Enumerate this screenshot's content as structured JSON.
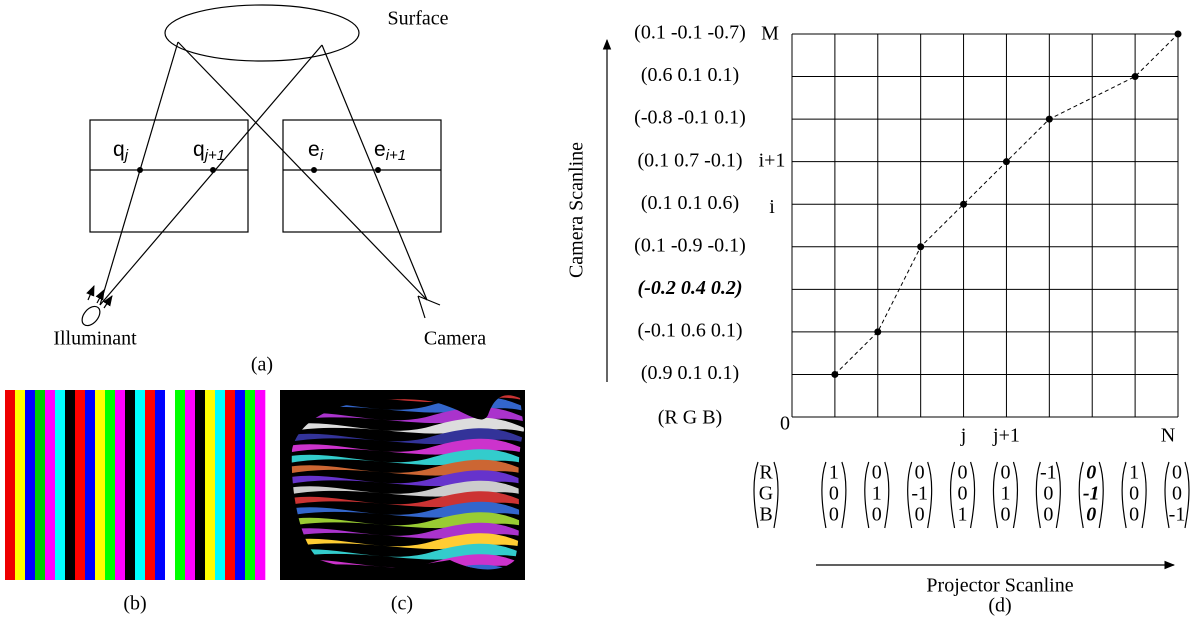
{
  "panel_a": {
    "surface": "Surface",
    "points": [
      {
        "base": "q",
        "sub": "j"
      },
      {
        "base": "q",
        "sub": "j+1"
      },
      {
        "base": "e",
        "sub": "i"
      },
      {
        "base": "e",
        "sub": "i+1"
      }
    ],
    "illuminant": "Illuminant",
    "camera": "Camera",
    "caption": "(a)"
  },
  "panel_b": {
    "caption": "(b)"
  },
  "panel_c": {
    "caption": "(c)"
  },
  "panel_d": {
    "y_axis_title": "Camera Scanline",
    "x_axis_title": "Projector Scanline",
    "caption": "(d)",
    "row_labels": [
      "(0.1 -0.1 -0.7)",
      "(0.6 0.1 0.1)",
      "(-0.8 -0.1 0.1)",
      "(0.1 0.7 -0.1)",
      "(0.1 0.1 0.6)",
      "(0.1 -0.9 -0.1)",
      "(-0.2 0.4 0.2)",
      "(-0.1 0.6 0.1)",
      "(0.9 0.1 0.1)",
      "(R   G   B)"
    ],
    "row_marks": [
      "M",
      "i+1",
      "i",
      "0"
    ],
    "column_marks": [
      "j",
      "j+1",
      "N"
    ],
    "vector_header": [
      "R",
      "G",
      "B"
    ],
    "vectors": [
      [
        "1",
        "0",
        "0"
      ],
      [
        "0",
        "1",
        "0"
      ],
      [
        "0",
        "-1",
        "0"
      ],
      [
        "0",
        "0",
        "1"
      ],
      [
        "0",
        "1",
        "0"
      ],
      [
        "-1",
        "0",
        "0"
      ],
      [
        "0",
        "-1",
        "0"
      ],
      [
        "1",
        "0",
        "0"
      ],
      [
        "0",
        "0",
        "-1"
      ]
    ]
  }
}
